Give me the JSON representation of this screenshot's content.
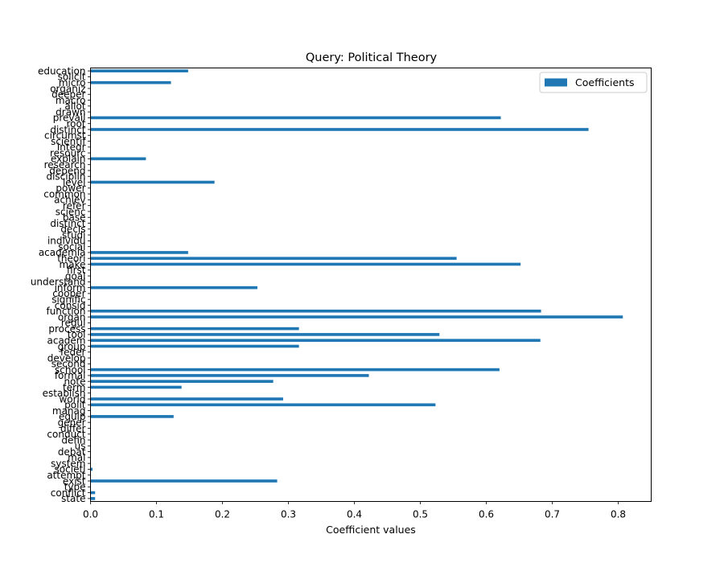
{
  "chart_data": {
    "type": "bar",
    "orientation": "horizontal",
    "title": "Query: Political Theory",
    "xlabel": "Coefficient values",
    "ylabel": "",
    "xlim": [
      0.0,
      0.85
    ],
    "xticks": [
      "0.0",
      "0.1",
      "0.2",
      "0.3",
      "0.4",
      "0.5",
      "0.6",
      "0.7",
      "0.8"
    ],
    "legend": {
      "label": "Coefficients",
      "position": "top-right"
    },
    "color": "#1f77b4",
    "grid": false,
    "categories": [
      "education",
      "solicit",
      "micro",
      "organiz",
      "deeper",
      "macro",
      "allot",
      "drawn",
      "prevail",
      "root",
      "distinct",
      "circumst",
      "scientif",
      "integr",
      "resourc",
      "explain",
      "research",
      "depend",
      "disciplin",
      "level",
      "power",
      "common",
      "achiev",
      "refer",
      "scienc",
      "base",
      "distinct",
      "decis",
      "studi",
      "individu",
      "social",
      "academia",
      "theori",
      "make",
      "first",
      "goal",
      "understand",
      "inform",
      "cooper",
      "signific",
      "consid",
      "function",
      "organ",
      "regul",
      "process",
      "tool",
      "academ",
      "group",
      "feder",
      "develop",
      "second",
      "school",
      "formal",
      "note",
      "term",
      "establish",
      "world",
      "polit",
      "manag",
      "equip",
      "gener",
      "differ",
      "conduct",
      "defin",
      "us",
      "debat",
      "mai",
      "system",
      "societi",
      "attempt",
      "exist",
      "type",
      "conflict",
      "state"
    ],
    "values": [
      0.148,
      0.0,
      0.122,
      0.0,
      0.0,
      0.0,
      0.0,
      0.0,
      0.622,
      0.0,
      0.755,
      0.0,
      0.0,
      0.0,
      0.0,
      0.084,
      0.0,
      0.0,
      0.0,
      0.188,
      0.0,
      0.0,
      0.0,
      0.0,
      0.0,
      0.0,
      0.0,
      0.0,
      0.0,
      0.0,
      0.0,
      0.148,
      0.555,
      0.652,
      0.0,
      0.0,
      0.0,
      0.253,
      0.0,
      0.0,
      0.0,
      0.683,
      0.807,
      0.0,
      0.316,
      0.529,
      0.682,
      0.316,
      0.0,
      0.0,
      0.0,
      0.62,
      0.422,
      0.277,
      0.138,
      0.0,
      0.292,
      0.523,
      0.0,
      0.126,
      0.0,
      0.0,
      0.0,
      0.0,
      0.0,
      0.0,
      0.0,
      0.0,
      0.003,
      0.0,
      0.283,
      0.0,
      0.007,
      0.007
    ]
  }
}
